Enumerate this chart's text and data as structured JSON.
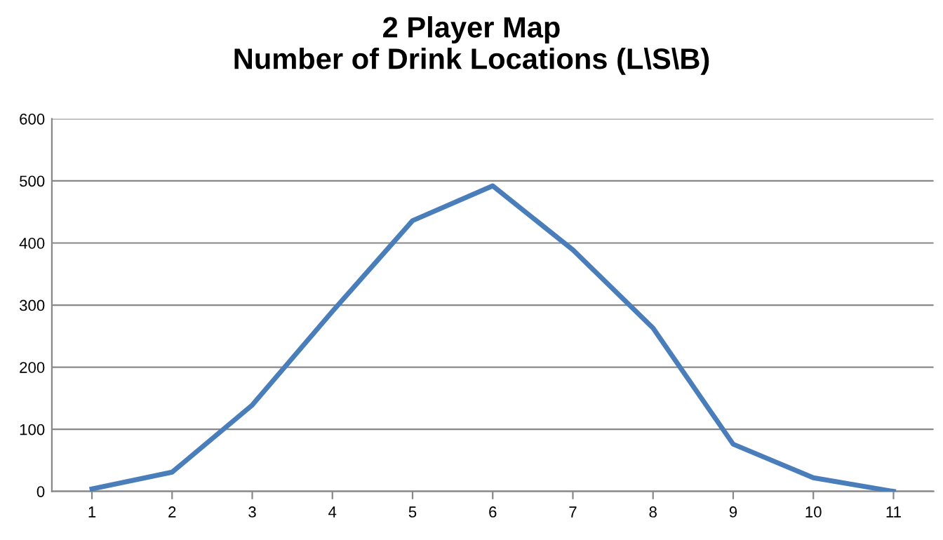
{
  "chart_data": {
    "type": "line",
    "title": "2 Player Map\nNumber of Drink Locations (L\\S\\B)",
    "categories": [
      "1",
      "2",
      "3",
      "4",
      "5",
      "6",
      "7",
      "8",
      "9",
      "10",
      "11"
    ],
    "series": [
      {
        "color": "#4a7ebb",
        "values": [
          4,
          31,
          139,
          290,
          436,
          492,
          389,
          263,
          76,
          22,
          0
        ]
      }
    ],
    "ylim": [
      0,
      600
    ],
    "yticks": [
      0,
      100,
      200,
      300,
      400,
      500,
      600
    ],
    "grid": "y",
    "marker": "none",
    "line_style": "solid"
  }
}
